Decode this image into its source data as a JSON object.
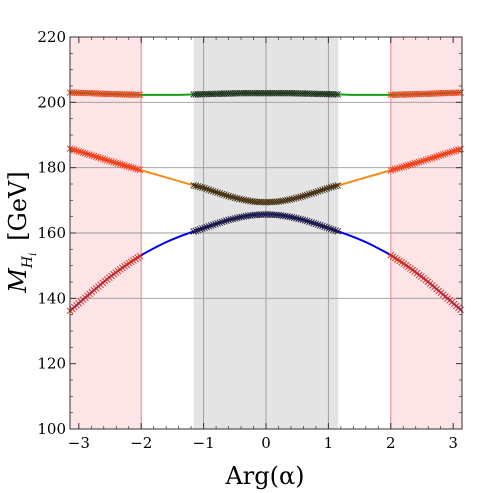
{
  "chart_data": {
    "type": "line",
    "title": "",
    "xlabel": "Arg(α)",
    "ylabel": {
      "main": "M",
      "sub": "H",
      "subsub": "i",
      "unit": "[GeV]"
    },
    "xlim": [
      -3.14159,
      3.14159
    ],
    "ylim": [
      100,
      220
    ],
    "xticks": [
      -3,
      -2,
      -1,
      0,
      1,
      2,
      3
    ],
    "xtick_labels": [
      "−3",
      "−2",
      "−1",
      "0",
      "1",
      "2",
      "3"
    ],
    "yticks": [
      100,
      120,
      140,
      160,
      180,
      200,
      220
    ],
    "ytick_labels": [
      "100",
      "120",
      "140",
      "160",
      "180",
      "200",
      "220"
    ],
    "grid": true,
    "grid_x": [
      -1,
      0,
      1
    ],
    "grid_y": [
      140,
      160,
      180,
      200
    ],
    "regions": [
      {
        "kind": "excluded",
        "x0": -3.14159,
        "x1": -2.0,
        "color": "#fde4e6"
      },
      {
        "kind": "excluded",
        "x0": 2.0,
        "x1": 3.14159,
        "color": "#fde4e6"
      },
      {
        "kind": "allowed",
        "x0": -1.16,
        "x1": 1.16,
        "color": "#e4e4e4"
      }
    ],
    "series": [
      {
        "id": "light",
        "color": "#0000ee",
        "marker_outer": "#d52a1a",
        "marker_inner": "#1a1a40",
        "x": [
          -3.14,
          -3.0,
          -2.8,
          -2.6,
          -2.4,
          -2.2,
          -2.0,
          -1.8,
          -1.6,
          -1.4,
          -1.2,
          -1.0,
          -0.8,
          -0.6,
          -0.4,
          -0.2,
          0.0,
          0.2,
          0.4,
          0.6,
          0.8,
          1.0,
          1.2,
          1.4,
          1.6,
          1.8,
          2.0,
          2.2,
          2.4,
          2.6,
          2.8,
          3.0,
          3.14
        ],
        "y": [
          136.2,
          138.5,
          141.8,
          145.0,
          148.0,
          150.7,
          153.2,
          155.3,
          157.2,
          158.8,
          160.2,
          161.5,
          162.8,
          164.0,
          164.9,
          165.5,
          165.7,
          165.5,
          164.9,
          164.0,
          162.8,
          161.5,
          160.2,
          158.8,
          157.2,
          155.3,
          153.2,
          150.7,
          148.0,
          145.0,
          141.8,
          138.5,
          136.2
        ]
      },
      {
        "id": "middle",
        "color": "#f28c1a",
        "marker_outer": "#f03a1a",
        "marker_inner": "#3a2a10",
        "x": [
          -3.14,
          -3.0,
          -2.8,
          -2.6,
          -2.4,
          -2.2,
          -2.0,
          -1.8,
          -1.6,
          -1.4,
          -1.2,
          -1.0,
          -0.8,
          -0.6,
          -0.4,
          -0.2,
          0.0,
          0.2,
          0.4,
          0.6,
          0.8,
          1.0,
          1.2,
          1.4,
          1.6,
          1.8,
          2.0,
          2.2,
          2.4,
          2.6,
          2.8,
          3.0,
          3.14
        ],
        "y": [
          185.8,
          185.0,
          183.8,
          182.6,
          181.4,
          180.3,
          179.2,
          178.1,
          177.0,
          175.9,
          174.8,
          173.8,
          172.5,
          171.3,
          170.3,
          169.6,
          169.4,
          169.6,
          170.3,
          171.3,
          172.5,
          173.8,
          174.8,
          175.9,
          177.0,
          178.1,
          179.2,
          180.3,
          181.4,
          182.6,
          183.8,
          185.0,
          185.8
        ]
      },
      {
        "id": "heavy",
        "color": "#14a014",
        "marker_outer": "#e0451a",
        "marker_inner": "#1a2a1a",
        "x": [
          -3.14,
          -3.0,
          -2.8,
          -2.6,
          -2.4,
          -2.2,
          -2.0,
          -1.8,
          -1.6,
          -1.4,
          -1.2,
          -1.0,
          -0.8,
          -0.6,
          -0.4,
          -0.2,
          0.0,
          0.2,
          0.4,
          0.6,
          0.8,
          1.0,
          1.2,
          1.4,
          1.6,
          1.8,
          2.0,
          2.2,
          2.4,
          2.6,
          2.8,
          3.0,
          3.14
        ],
        "y": [
          203.0,
          202.9,
          202.8,
          202.6,
          202.5,
          202.4,
          202.3,
          202.3,
          202.3,
          202.3,
          202.4,
          202.5,
          202.6,
          202.7,
          202.8,
          202.8,
          202.8,
          202.8,
          202.8,
          202.7,
          202.6,
          202.5,
          202.4,
          202.3,
          202.3,
          202.3,
          202.3,
          202.4,
          202.5,
          202.6,
          202.8,
          202.9,
          203.0
        ]
      }
    ]
  }
}
